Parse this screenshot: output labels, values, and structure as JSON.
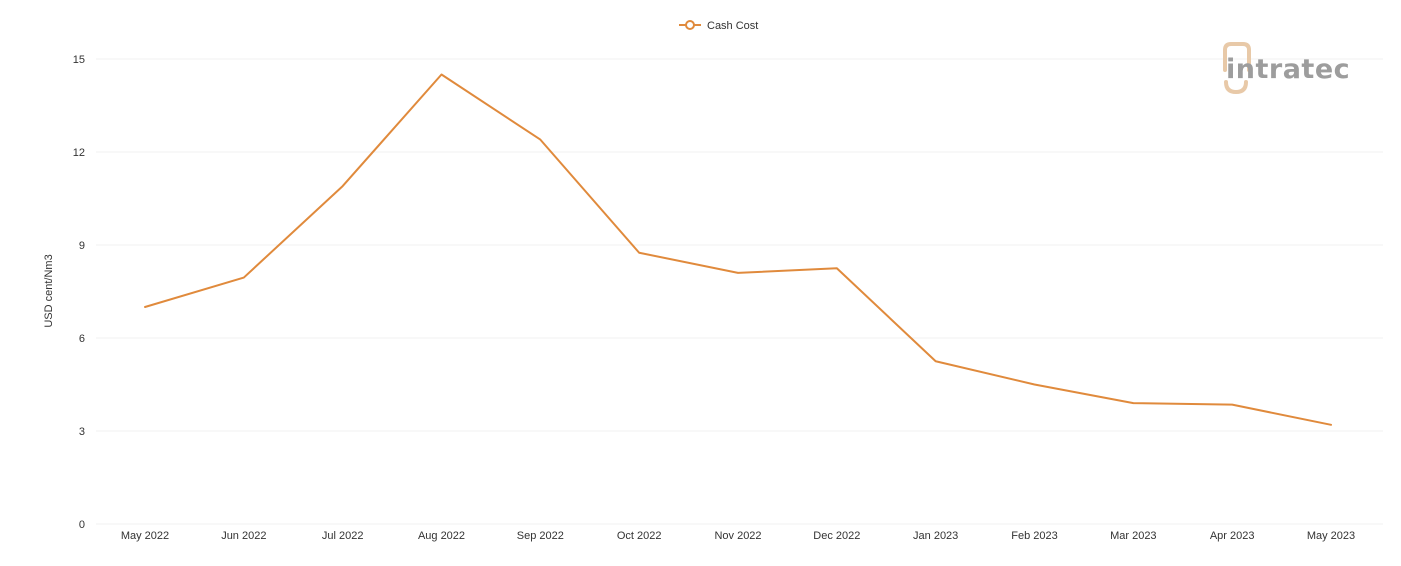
{
  "chart_data": {
    "type": "line",
    "title": "",
    "xlabel": "",
    "ylabel": "USD cent/Nm3",
    "categories": [
      "May 2022",
      "Jun 2022",
      "Jul 2022",
      "Aug 2022",
      "Sep 2022",
      "Oct 2022",
      "Nov 2022",
      "Dec 2022",
      "Jan 2023",
      "Feb 2023",
      "Mar 2023",
      "Apr 2023",
      "May 2023"
    ],
    "series": [
      {
        "name": "Cash Cost",
        "color": "#e08a3c",
        "values": [
          7.0,
          7.95,
          10.9,
          14.5,
          12.4,
          8.75,
          8.1,
          8.25,
          5.25,
          4.5,
          3.9,
          3.85,
          3.2
        ]
      }
    ],
    "ylim": [
      0,
      15
    ],
    "yticks": [
      0,
      3,
      6,
      9,
      12,
      15
    ],
    "grid": true,
    "legend_position": "top-center"
  },
  "watermark": {
    "text": "intratec",
    "icon": "intratec-logo-icon",
    "color": "#9d9d9d",
    "accent_color": "#e8c9a8"
  }
}
